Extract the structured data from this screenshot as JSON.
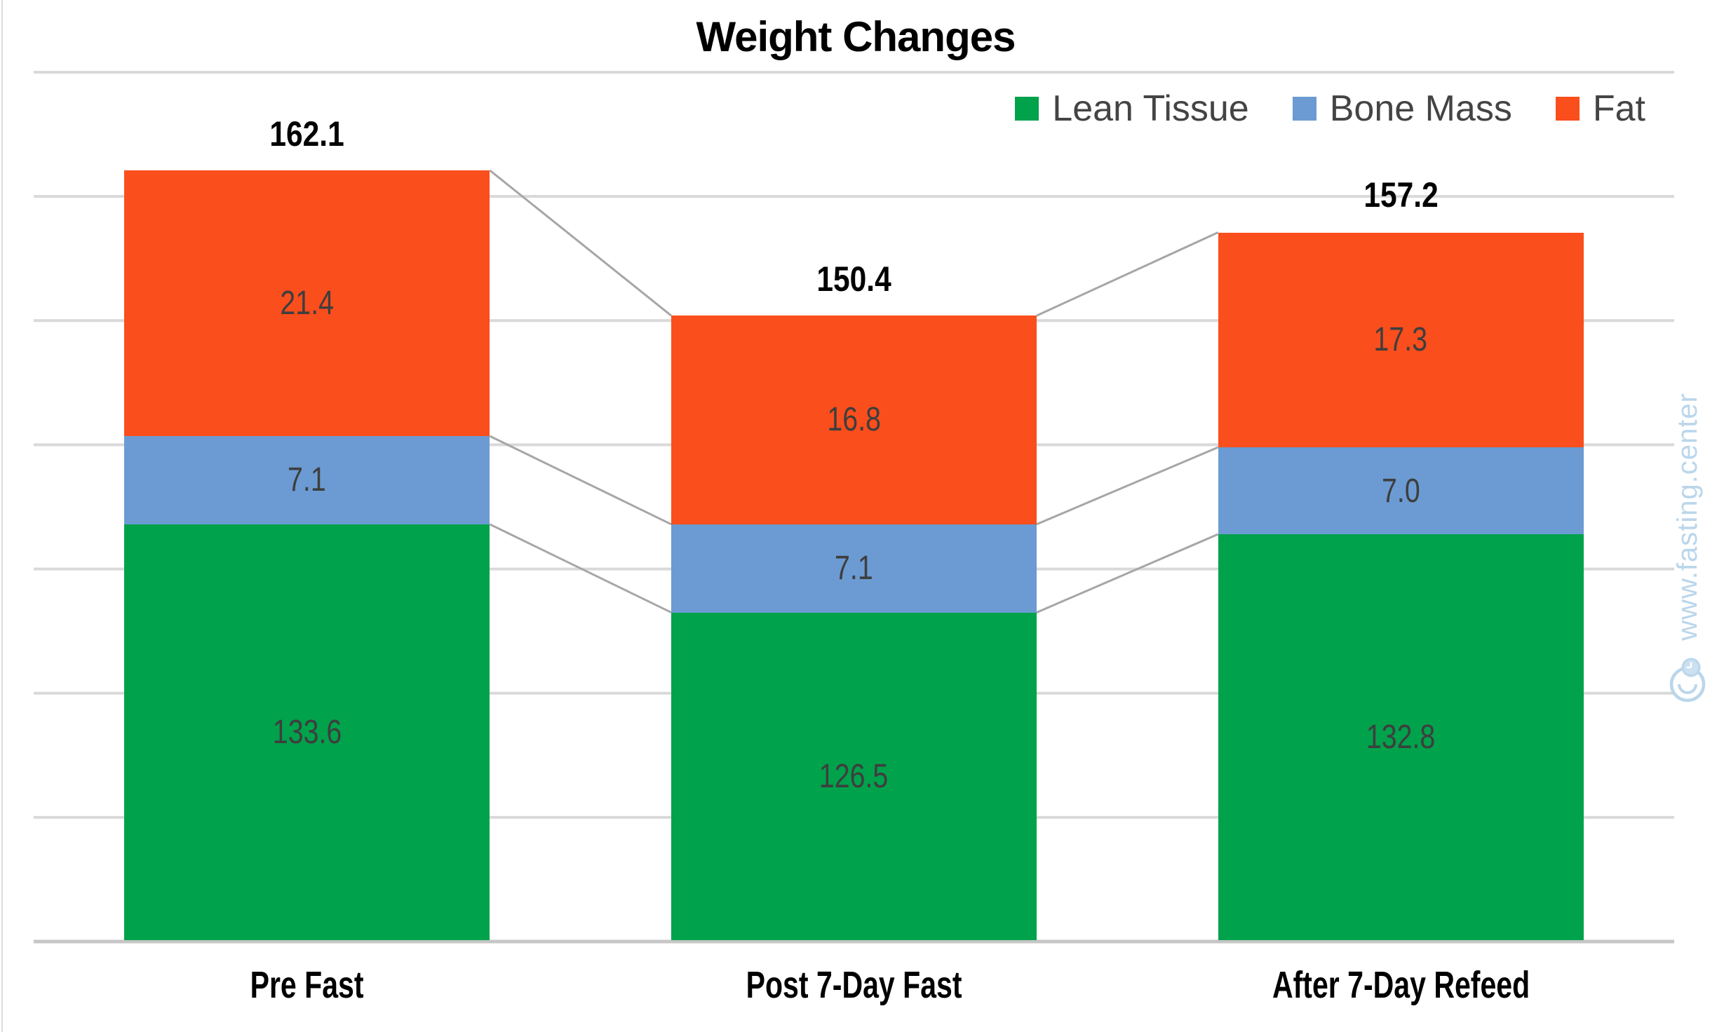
{
  "chart_data": {
    "type": "bar",
    "variant": "stacked-column",
    "title": "Weight Changes",
    "categories": [
      "Pre Fast",
      "Post 7-Day Fast",
      "After 7-Day Refeed"
    ],
    "series": [
      {
        "name": "Lean Tissue",
        "color": "#00A24B",
        "values": [
          133.6,
          126.5,
          132.8
        ],
        "labels": [
          "133.6",
          "126.5",
          "132.8"
        ]
      },
      {
        "name": "Bone Mass",
        "color": "#6B9BD2",
        "values": [
          7.1,
          7.1,
          7.0
        ],
        "labels": [
          "7.1",
          "7.1",
          "7.0"
        ]
      },
      {
        "name": "Fat",
        "color": "#FA4E1D",
        "values": [
          21.4,
          16.8,
          17.3
        ],
        "labels": [
          "21.4",
          "16.8",
          "17.3"
        ]
      }
    ],
    "totals": [
      162.1,
      150.4,
      157.2
    ],
    "total_labels": [
      "162.1",
      "150.4",
      "157.2"
    ],
    "axis": {
      "y_min": 100,
      "y_max": 170,
      "y_step": 10,
      "y_tick_labels_visible": false,
      "x_labels_visible": true
    },
    "legend": {
      "position": "top-right",
      "entries": [
        "Lean Tissue",
        "Bone Mass",
        "Fat"
      ]
    },
    "grid": {
      "horizontal": true,
      "color": "#D9D9D9",
      "axis_line_color": "#C6C6C6"
    },
    "connector_lines": {
      "enabled": true,
      "color": "#A6A6A6"
    },
    "label_color": "#3E3E3E",
    "title_color": "#000000",
    "legend_text_color": "#444444"
  },
  "watermark": {
    "text": "www.fasting.center",
    "logo": "clock-badge",
    "color": "#BAD6EB"
  }
}
